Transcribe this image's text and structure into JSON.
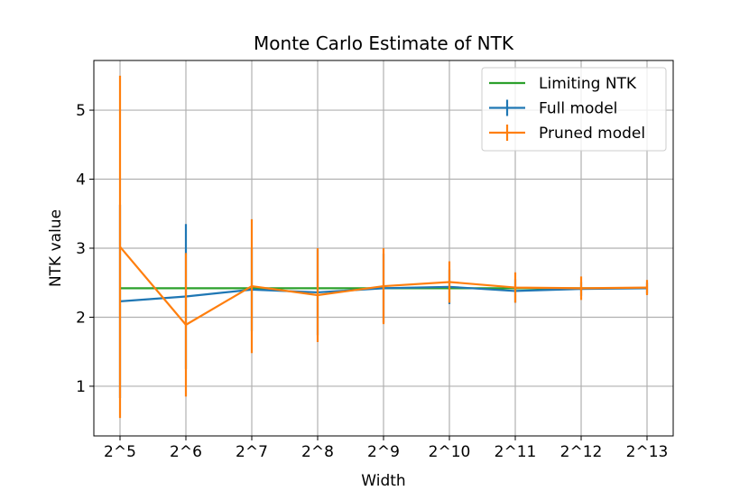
{
  "chart_data": {
    "type": "line",
    "title": "Monte Carlo Estimate of NTK",
    "xlabel": "Width",
    "ylabel": "NTK value",
    "categories": [
      "2^5",
      "2^6",
      "2^7",
      "2^8",
      "2^9",
      "2^10",
      "2^11",
      "2^12",
      "2^13"
    ],
    "y_ticks": [
      "1",
      "2",
      "3",
      "4",
      "5"
    ],
    "ylim": [
      0.28,
      5.72
    ],
    "grid": true,
    "legend_position": "top-right",
    "series": [
      {
        "name": "Limiting NTK",
        "color": "#2ca02c",
        "values": [
          2.42,
          2.42,
          2.42,
          2.42,
          2.42,
          2.42,
          2.42,
          2.42,
          2.42
        ]
      },
      {
        "name": "Full model",
        "color": "#1f77b4",
        "values": [
          2.23,
          2.3,
          2.4,
          2.36,
          2.42,
          2.44,
          2.38,
          2.41,
          2.42
        ],
        "errors": [
          1.4,
          1.05,
          0.6,
          0.62,
          0.5,
          0.25,
          0.17,
          0.1,
          0.08
        ]
      },
      {
        "name": "Pruned model",
        "color": "#ff7f0e",
        "values": [
          3.02,
          1.89,
          2.45,
          2.32,
          2.45,
          2.51,
          2.43,
          2.42,
          2.43
        ],
        "errors": [
          2.48,
          1.04,
          0.97,
          0.68,
          0.55,
          0.3,
          0.22,
          0.17,
          0.11
        ]
      }
    ]
  }
}
